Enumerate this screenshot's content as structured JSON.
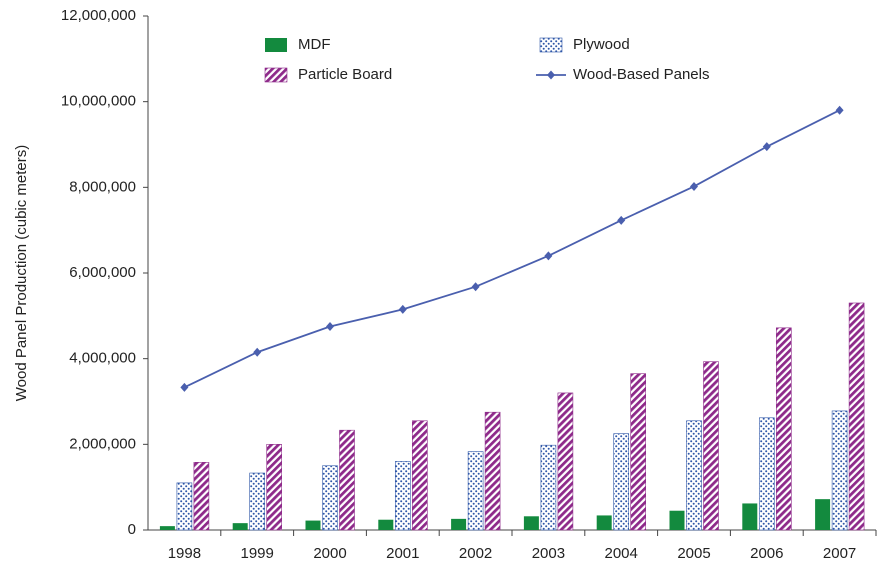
{
  "chart_data": {
    "type": "bar",
    "y_label": "Wood Panel Production (cubic meters)",
    "categories": [
      "1998",
      "1999",
      "2000",
      "2001",
      "2002",
      "2003",
      "2004",
      "2005",
      "2006",
      "2007"
    ],
    "series": [
      {
        "name": "MDF",
        "color": "#138a3e",
        "pattern": "solid",
        "values": [
          90000,
          160000,
          220000,
          240000,
          260000,
          320000,
          340000,
          450000,
          620000,
          720000
        ]
      },
      {
        "name": "Plywood",
        "color": "#2f57a8",
        "pattern": "dots",
        "values": [
          1100000,
          1330000,
          1500000,
          1600000,
          1830000,
          1980000,
          2250000,
          2550000,
          2620000,
          2780000
        ]
      },
      {
        "name": "Particle Board",
        "color": "#8e2a8a",
        "pattern": "stripes",
        "values": [
          1580000,
          2000000,
          2330000,
          2550000,
          2750000,
          3200000,
          3650000,
          3930000,
          4720000,
          5300000
        ]
      },
      {
        "name": "Wood-Based Panels",
        "color": "#4a5fae",
        "type": "line",
        "values": [
          3330000,
          4150000,
          4750000,
          5150000,
          5680000,
          6400000,
          7230000,
          8020000,
          8950000,
          9800000
        ]
      }
    ],
    "ylim": [
      0,
      12000000
    ],
    "yticks": [
      0,
      {
        "value": 2000000,
        "label": "2,000,000"
      },
      {
        "value": 4000000,
        "label": "4,000,000"
      },
      {
        "value": 6000000,
        "label": "6,000,000"
      },
      {
        "value": 8000000,
        "label": "8,000,000"
      },
      {
        "value": 10000000,
        "label": "10,000,000"
      },
      {
        "value": 12000000,
        "label": "12,000,000"
      }
    ],
    "grid": false,
    "legend": "top"
  }
}
